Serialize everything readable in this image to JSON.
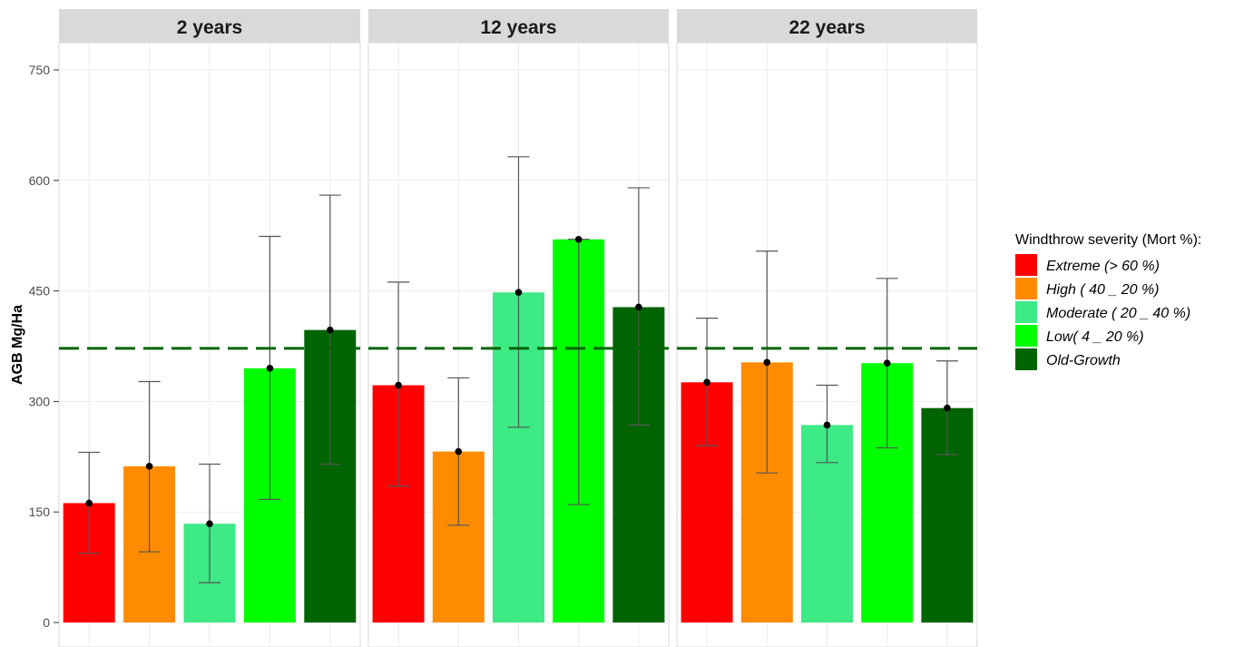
{
  "chart_data": {
    "type": "bar",
    "facets": [
      "2 years",
      "12 years",
      "22 years"
    ],
    "ylabel": "AGB Mg/Ha",
    "xlabel": "",
    "ylim": [
      0,
      780
    ],
    "yticks": [
      0,
      150,
      300,
      450,
      600,
      750
    ],
    "reference_line": {
      "value": 372,
      "style": "dashed",
      "color": "#006400"
    },
    "legend": {
      "title": "Windthrow severity (Mort %):",
      "position": "right",
      "entries": [
        {
          "label": "Extreme (> 60 %)",
          "color": "#ff0000"
        },
        {
          "label": "High ( 40 _ 20 %)",
          "color": "#ff8c00"
        },
        {
          "label": "Moderate ( 20 _ 40 %)",
          "color": "#3dea85"
        },
        {
          "label": "Low( 4 _ 20 %)",
          "color": "#00ff00"
        },
        {
          "label": "Old-Growth",
          "color": "#006400"
        }
      ]
    },
    "series": [
      {
        "facet": "2 years",
        "values": [
          162,
          212,
          134,
          345,
          397
        ],
        "error_low": [
          94,
          96,
          54,
          167,
          215
        ],
        "error_high": [
          231,
          327,
          215,
          524,
          580
        ]
      },
      {
        "facet": "12 years",
        "values": [
          322,
          232,
          448,
          520,
          428
        ],
        "error_low": [
          185,
          132,
          265,
          160,
          268
        ],
        "error_high": [
          462,
          332,
          632,
          520,
          590
        ]
      },
      {
        "facet": "22 years",
        "values": [
          326,
          353,
          268,
          352,
          291
        ],
        "error_low": [
          240,
          203,
          217,
          237,
          228
        ],
        "error_high": [
          413,
          504,
          322,
          467,
          355
        ]
      }
    ]
  }
}
